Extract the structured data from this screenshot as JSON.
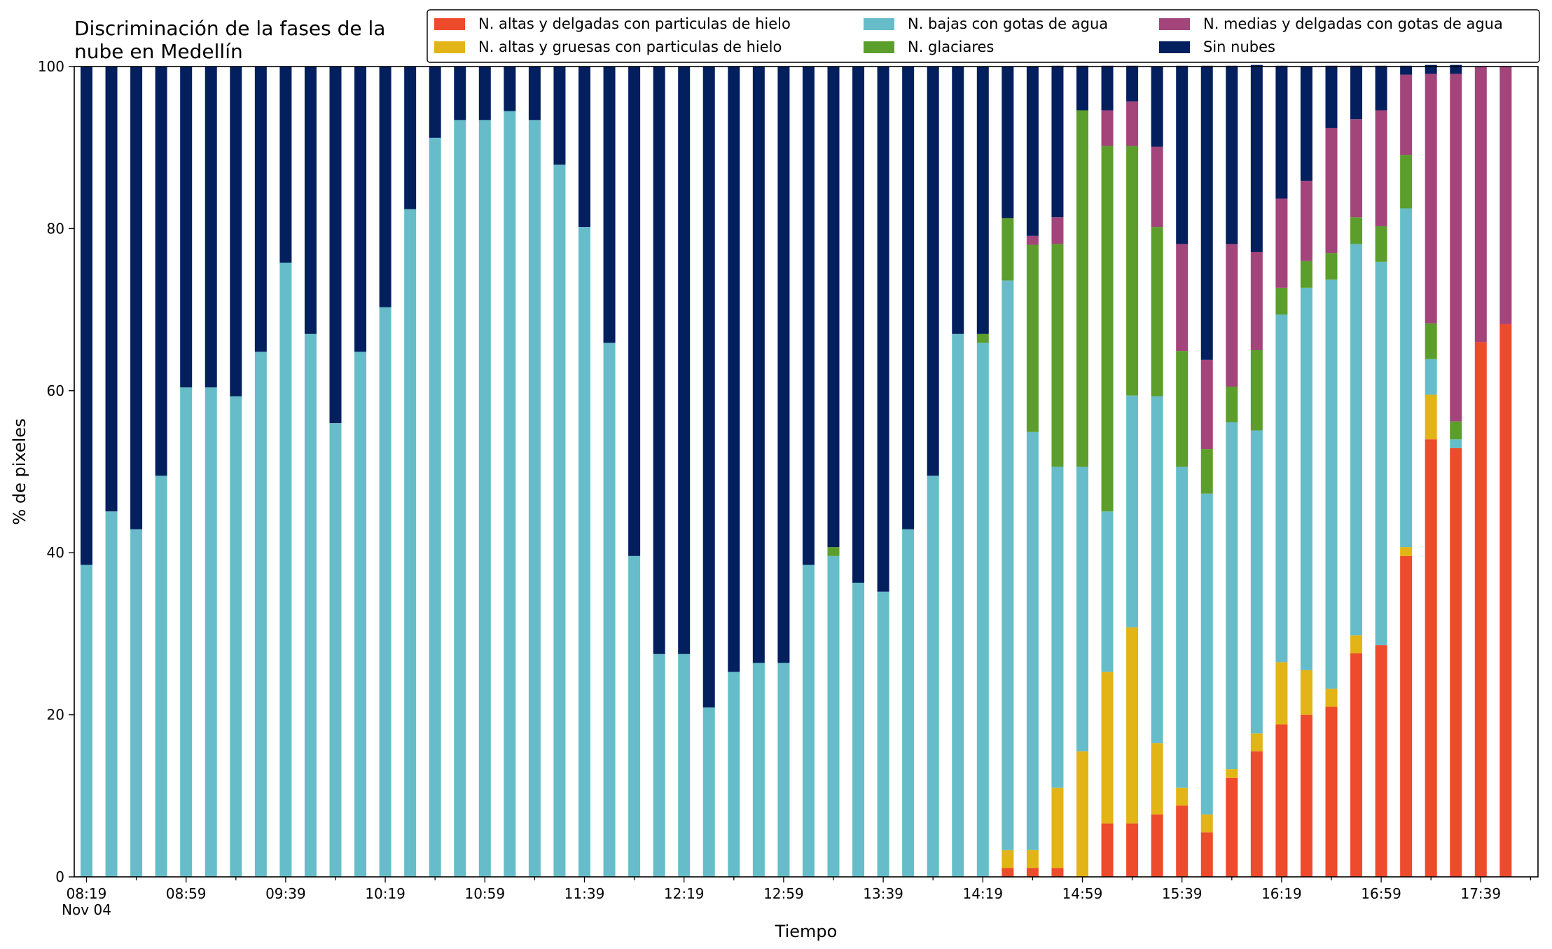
{
  "chart_data": {
    "type": "bar",
    "stacked": true,
    "title": "Discriminación de la fases de la\nnube en Medellín",
    "xlabel": "Tiempo",
    "ylabel": "% de pixeles",
    "ylim": [
      0,
      100
    ],
    "yticks": [
      0,
      20,
      40,
      60,
      80,
      100
    ],
    "xtick_labels": [
      "08:19\nNov 04",
      "08:59",
      "09:39",
      "10:19",
      "10:59",
      "11:39",
      "12:19",
      "12:59",
      "13:39",
      "14:19",
      "14:59",
      "15:39",
      "16:19",
      "16:59",
      "17:39"
    ],
    "legend_position": "top-right",
    "grid": false,
    "bar_count": 58,
    "categories": [
      "08:19",
      "08:29",
      "08:39",
      "08:49",
      "08:59",
      "09:09",
      "09:19",
      "09:29",
      "09:39",
      "09:49",
      "09:59",
      "10:09",
      "10:19",
      "10:29",
      "10:39",
      "10:49",
      "10:59",
      "11:09",
      "11:19",
      "11:29",
      "11:39",
      "11:49",
      "11:59",
      "12:09",
      "12:19",
      "12:29",
      "12:39",
      "12:49",
      "12:59",
      "13:09",
      "13:19",
      "13:29",
      "13:39",
      "13:49",
      "13:59",
      "14:09",
      "14:19",
      "14:29",
      "14:39",
      "14:49",
      "14:59",
      "15:09",
      "15:19",
      "15:29",
      "15:39",
      "15:49",
      "15:59",
      "16:09",
      "16:19",
      "16:29",
      "16:39",
      "16:49",
      "16:59",
      "17:09",
      "17:19",
      "17:29",
      "17:39",
      "17:49"
    ],
    "series": [
      {
        "name": "N. altas y delgadas con particulas de hielo",
        "color": "#ee4a2c",
        "values": [
          0,
          0,
          0,
          0,
          0,
          0,
          0,
          0,
          0,
          0,
          0,
          0,
          0,
          0,
          0,
          0,
          0,
          0,
          0,
          0,
          0,
          0,
          0,
          0,
          0,
          0,
          0,
          0,
          0,
          0,
          0,
          0,
          0,
          0,
          0,
          0,
          0,
          1.1,
          1.1,
          1.1,
          0,
          6.6,
          6.6,
          7.7,
          8.8,
          5.5,
          12.2,
          15.5,
          18.8,
          20,
          21,
          27.6,
          28.6,
          39.6,
          54,
          52.9,
          66,
          68.2
        ]
      },
      {
        "name": "N. altas y gruesas con particulas de hielo",
        "color": "#e2b416",
        "values": [
          0,
          0,
          0,
          0,
          0,
          0,
          0,
          0,
          0,
          0,
          0,
          0,
          0,
          0,
          0,
          0,
          0,
          0,
          0,
          0,
          0,
          0,
          0,
          0,
          0,
          0,
          0,
          0,
          0,
          0,
          0,
          0,
          0,
          0,
          0,
          0,
          0,
          2.2,
          2.2,
          9.9,
          15.5,
          18.7,
          24.2,
          8.8,
          2.2,
          2.2,
          1.1,
          2.2,
          7.7,
          5.5,
          2.2,
          2.2,
          0,
          1.1,
          5.5,
          0,
          0,
          0
        ]
      },
      {
        "name": "N. bajas con gotas de agua",
        "color": "#66bdc9",
        "values": [
          38.5,
          45.1,
          42.9,
          49.5,
          60.4,
          60.4,
          59.3,
          64.8,
          75.8,
          67,
          56,
          64.8,
          70.3,
          82.4,
          91.2,
          93.4,
          93.4,
          94.5,
          93.4,
          87.9,
          80.2,
          65.9,
          39.6,
          27.5,
          27.5,
          20.9,
          25.3,
          26.4,
          26.4,
          38.5,
          39.6,
          36.3,
          35.2,
          42.9,
          49.5,
          67,
          65.9,
          70.3,
          51.6,
          39.6,
          35.1,
          19.8,
          28.6,
          42.8,
          39.6,
          39.6,
          42.8,
          37.4,
          42.9,
          47.2,
          50.5,
          48.3,
          47.3,
          41.8,
          4.4,
          1.1,
          0,
          0
        ]
      },
      {
        "name": "N. glaciares",
        "color": "#5b9e2b",
        "values": [
          0,
          0,
          0,
          0,
          0,
          0,
          0,
          0,
          0,
          0,
          0,
          0,
          0,
          0,
          0,
          0,
          0,
          0,
          0,
          0,
          0,
          0,
          0,
          0,
          0,
          0,
          0,
          0,
          0,
          0,
          1.1,
          0,
          0,
          0,
          0,
          0,
          1.1,
          7.7,
          23.1,
          27.5,
          44,
          45.1,
          30.8,
          20.9,
          14.3,
          5.5,
          4.4,
          9.9,
          3.3,
          3.3,
          3.3,
          3.3,
          4.4,
          6.6,
          4.4,
          2.2,
          0,
          0
        ]
      },
      {
        "name": "N. medias y delgadas con gotas de agua",
        "color": "#a3447b",
        "values": [
          0,
          0,
          0,
          0,
          0,
          0,
          0,
          0,
          0,
          0,
          0,
          0,
          0,
          0,
          0,
          0,
          0,
          0,
          0,
          0,
          0,
          0,
          0,
          0,
          0,
          0,
          0,
          0,
          0,
          0,
          0,
          0,
          0,
          0,
          0,
          0,
          0,
          0,
          1.1,
          3.3,
          0,
          4.4,
          5.5,
          9.9,
          13.2,
          11,
          17.6,
          12.1,
          11,
          9.9,
          15.4,
          12.1,
          14.3,
          9.9,
          30.8,
          42.9,
          34,
          31.8
        ]
      },
      {
        "name": "Sin nubes",
        "color": "#031f5e",
        "values": [
          61.5,
          54.9,
          57.1,
          50.5,
          39.6,
          39.6,
          40.7,
          35.2,
          24.2,
          33,
          44,
          35.2,
          29.7,
          17.6,
          8.8,
          6.6,
          6.6,
          5.5,
          6.6,
          12.1,
          19.8,
          34.1,
          60.4,
          72.5,
          72.5,
          79.1,
          74.7,
          73.6,
          73.6,
          61.5,
          59.3,
          63.7,
          64.8,
          57.1,
          50.5,
          33,
          33,
          18.7,
          20.9,
          18.7,
          5.5,
          5.5,
          4.4,
          9.9,
          22,
          36.3,
          22,
          23.1,
          16.4,
          14.1,
          7.7,
          6.6,
          5.5,
          1.1,
          1.1,
          1.1,
          0,
          0
        ]
      }
    ]
  }
}
